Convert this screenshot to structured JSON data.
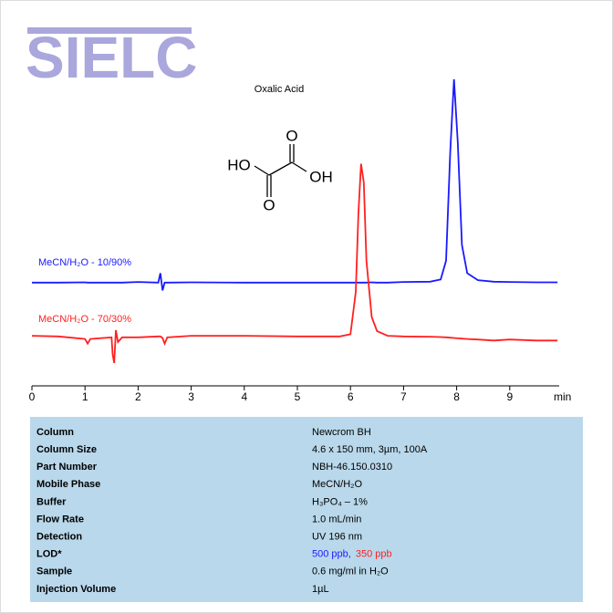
{
  "logo": "SIELC",
  "compound": "Oxalic Acid",
  "structure": {
    "left_hydroxyl": "HO",
    "right_hydroxyl": "OH",
    "top_oxygen": "O",
    "bottom_oxygen": "O"
  },
  "chart_data": {
    "type": "line",
    "x": [
      0,
      0.5,
      1.0,
      1.05,
      1.1,
      1.5,
      1.52,
      1.55,
      1.58,
      1.62,
      1.7,
      2.0,
      2.38,
      2.42,
      2.46,
      2.5,
      2.55,
      3,
      4,
      5,
      5.8,
      6.0,
      6.1,
      6.15,
      6.2,
      6.25,
      6.3,
      6.4,
      6.5,
      6.7,
      7.0,
      7.5,
      7.7,
      7.8,
      7.88,
      7.95,
      8.02,
      8.1,
      8.2,
      8.4,
      8.7,
      9,
      9.5,
      9.9
    ],
    "series": [
      {
        "name": "MeCN/H₂O - 10/90%",
        "color": "#1a1aff",
        "values": [
          33,
          33,
          33.1,
          33,
          33,
          33,
          33,
          33,
          33,
          33,
          33,
          33.2,
          33,
          36,
          30.5,
          33,
          33,
          33.1,
          33,
          33,
          33,
          33,
          33,
          33,
          33,
          33,
          33,
          33.1,
          33,
          33,
          33.2,
          33.3,
          34,
          40,
          75,
          98,
          78,
          45,
          36,
          33.8,
          33.3,
          33.2,
          33.1,
          33.1
        ]
      },
      {
        "name": "MeCN/H₂O - 70/30%",
        "color": "#ff2020",
        "values": [
          16,
          15.8,
          15,
          13.5,
          15,
          15.5,
          10,
          7.3,
          17.8,
          14,
          15.5,
          15.5,
          15.8,
          15.8,
          15.3,
          13.5,
          15.5,
          16,
          16,
          15.8,
          15.8,
          16.5,
          30,
          55,
          71,
          65,
          40,
          22,
          17.5,
          16,
          15.8,
          15.7,
          15.6,
          15.5,
          15.4,
          15.3,
          15.2,
          15.1,
          15,
          14.8,
          14.5,
          14.8,
          14.5,
          14.5
        ]
      }
    ],
    "xlim": [
      0,
      10
    ],
    "ylim": [
      0,
      100
    ],
    "xticks": [
      0,
      1,
      2,
      3,
      4,
      5,
      6,
      7,
      8,
      9
    ],
    "x_unit": "min"
  },
  "table": {
    "rows": [
      [
        "Column",
        "Newcrom BH"
      ],
      [
        "Column Size",
        "4.6  x 150 mm, 3µm, 100A"
      ],
      [
        "Part Number",
        "NBH-46.150.0310"
      ],
      [
        "Mobile Phase",
        "MeCN/H₂O"
      ],
      [
        "Buffer",
        "H₃PO₄ – 1%"
      ],
      [
        "Flow Rate",
        "1.0 mL/min"
      ],
      [
        "Detection",
        "UV 196 nm"
      ],
      [
        "LOD*",
        "500 ppb,",
        "350 ppb"
      ],
      [
        "Sample",
        "0.6 mg/ml in H₂O"
      ],
      [
        "Injection Volume",
        "1µL"
      ]
    ]
  }
}
